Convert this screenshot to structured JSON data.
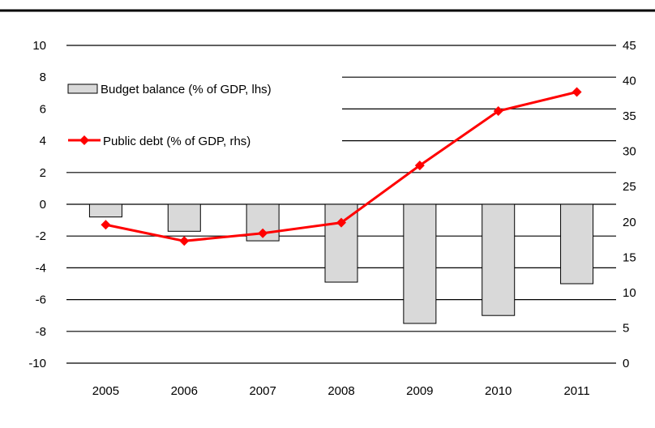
{
  "chart_data": {
    "type": "bar",
    "categories": [
      "2005",
      "2006",
      "2007",
      "2008",
      "2009",
      "2010",
      "2011"
    ],
    "series": [
      {
        "name": "Budget balance (% of GDP, lhs)",
        "type": "bar",
        "axis": "left",
        "color": "#d9d9d9",
        "values": [
          -0.8,
          -1.7,
          -2.3,
          -4.9,
          -7.5,
          -7.0,
          -5.0
        ]
      },
      {
        "name": "Public debt (% of GDP, rhs)",
        "type": "line",
        "axis": "right",
        "color": "#ff0000",
        "marker": "diamond",
        "values": [
          19.6,
          17.3,
          18.4,
          19.9,
          28.0,
          35.7,
          38.4
        ]
      }
    ],
    "y_left": {
      "min": -10,
      "max": 10,
      "step": 2,
      "ticks": [
        "10",
        "8",
        "6",
        "4",
        "2",
        "0",
        "-2",
        "-4",
        "-6",
        "-8",
        "-10"
      ]
    },
    "y_right": {
      "min": 0,
      "max": 45,
      "step": 5,
      "ticks": [
        "45",
        "40",
        "35",
        "30",
        "25",
        "20",
        "15",
        "10",
        "5",
        "0"
      ]
    },
    "grid": true,
    "legend_position": "top-left",
    "title": "",
    "xlabel": "",
    "ylabel": ""
  }
}
